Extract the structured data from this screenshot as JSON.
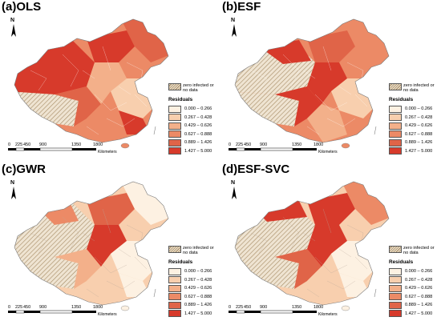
{
  "panels": [
    {
      "title": "(a)OLS",
      "map_id": "ols"
    },
    {
      "title": "(b)ESF",
      "map_id": "esf"
    },
    {
      "title": "(c)GWR",
      "map_id": "gwr"
    },
    {
      "title": "(d)ESF-SVC",
      "map_id": "esfsvc"
    }
  ],
  "north_label": "N",
  "scale": {
    "ticks": [
      "0",
      "225",
      "450",
      "900",
      "1350",
      "1800"
    ],
    "unit": "Kilometers"
  },
  "legend": {
    "nodata_label": "zero infected or no data",
    "title": "Residuals",
    "classes": [
      {
        "label": "0.000 – 0.266",
        "color": "#fdf1e2"
      },
      {
        "label": "0.267 – 0.428",
        "color": "#f8cfae"
      },
      {
        "label": "0.429 – 0.626",
        "color": "#f3b08a"
      },
      {
        "label": "0.627 – 0.888",
        "color": "#ec8a66"
      },
      {
        "label": "0.889 – 1.426",
        "color": "#e06448"
      },
      {
        "label": "1.427 – 5.000",
        "color": "#d73a2b"
      }
    ]
  },
  "colors": {
    "hatch_light": "#e9ddc8",
    "hatch_dark": "#a58a63",
    "border": "#7a7a7a"
  }
}
